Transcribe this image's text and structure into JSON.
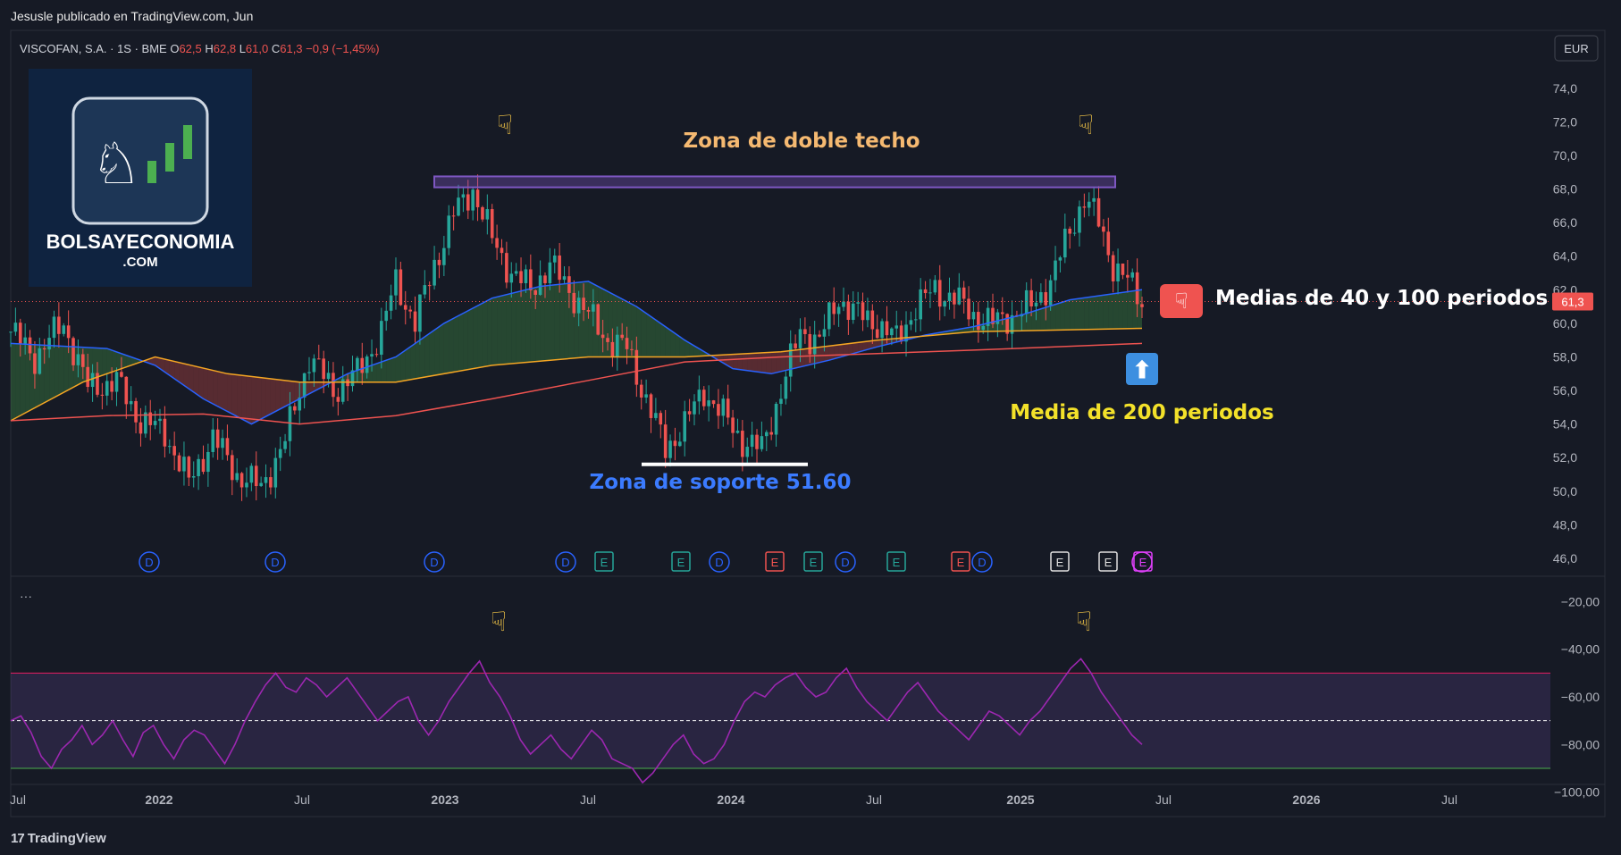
{
  "header": {
    "published_by": "Jesusle publicado en TradingView.com, Jun"
  },
  "symbol": {
    "name": "VISCOFAN, S.A. · 1S · BME",
    "o_label": "O",
    "o_value": "62,5",
    "h_label": "H",
    "h_value": "62,8",
    "l_label": "L",
    "l_value": "61,0",
    "c_label": "C",
    "c_value": "61,3",
    "change": "−0,9 (−1,45%)"
  },
  "currency": "EUR",
  "logo": {
    "line1": "BOLSAYECONOMIA",
    "line2": ".COM"
  },
  "footer": {
    "brand": "TradingView"
  },
  "indicator_menu": "···",
  "colors": {
    "background": "#161a25",
    "up": "#26a69a",
    "down": "#ef5350",
    "ma40": "#2962ff",
    "ma100": "#f5a623",
    "ma200": "#ef5350",
    "rsi": "#9c27b0",
    "resistance_box": "#7e57c2",
    "annot_top": "#f5b971",
    "annot_support": "#3b7bff",
    "annot_ma200": "#f3e12a"
  },
  "chart_data": [
    {
      "type": "candlestick",
      "title": "VISCOFAN, S.A. · 1S · BME",
      "x_ticks": [
        "Jul",
        "2022",
        "Jul",
        "2023",
        "Jul",
        "2024",
        "Jul",
        "2025",
        "Jul",
        "2026",
        "Jul"
      ],
      "y_ticks": [
        "74,0",
        "72,0",
        "70,0",
        "68,0",
        "66,0",
        "64,0",
        "62,0",
        "60,0",
        "58,0",
        "56,0",
        "54,0",
        "52,0",
        "50,0",
        "48,0",
        "46,0"
      ],
      "ylim": [
        45.2,
        75.0
      ],
      "last_price": "61,3",
      "series": [
        {
          "name": "Precio",
          "points": [
            [
              0,
              59.5
            ],
            [
              5,
              58.0
            ],
            [
              11,
              60.0
            ],
            [
              16,
              56.2
            ],
            [
              22,
              56.5
            ],
            [
              27,
              54.2
            ],
            [
              32,
              53.5
            ],
            [
              37,
              50.5
            ],
            [
              42,
              53.2
            ],
            [
              47,
              51.0
            ],
            [
              52,
              50.2
            ],
            [
              57,
              53.0
            ],
            [
              62,
              58.0
            ],
            [
              67,
              56.0
            ],
            [
              72,
              57.0
            ],
            [
              77,
              59.5
            ],
            [
              80,
              62.5
            ],
            [
              84,
              60.0
            ],
            [
              88,
              63.5
            ],
            [
              92,
              66.5
            ],
            [
              96,
              68.0
            ],
            [
              100,
              65.0
            ],
            [
              104,
              63.0
            ],
            [
              108,
              62.0
            ],
            [
              112,
              63.5
            ],
            [
              116,
              62.0
            ],
            [
              120,
              60.5
            ],
            [
              124,
              59.0
            ],
            [
              128,
              58.5
            ],
            [
              132,
              55.5
            ],
            [
              136,
              52.5
            ],
            [
              140,
              54.0
            ],
            [
              144,
              56.0
            ],
            [
              148,
              54.5
            ],
            [
              152,
              53.0
            ],
            [
              156,
              52.5
            ],
            [
              160,
              56.0
            ],
            [
              164,
              59.5
            ],
            [
              168,
              59.0
            ],
            [
              172,
              61.5
            ],
            [
              176,
              60.5
            ],
            [
              180,
              60.0
            ],
            [
              184,
              59.0
            ],
            [
              188,
              61.0
            ],
            [
              192,
              62.0
            ],
            [
              196,
              61.5
            ],
            [
              200,
              60.5
            ],
            [
              204,
              60.0
            ],
            [
              208,
              60.5
            ],
            [
              212,
              61.0
            ],
            [
              216,
              62.5
            ],
            [
              220,
              65.5
            ],
            [
              223,
              67.5
            ],
            [
              226,
              66.0
            ],
            [
              229,
              63.5
            ],
            [
              232,
              62.5
            ],
            [
              235,
              61.3
            ]
          ]
        },
        {
          "name": "Media 40",
          "points": [
            [
              0,
              58.8
            ],
            [
              20,
              58.5
            ],
            [
              30,
              57.5
            ],
            [
              40,
              55.5
            ],
            [
              50,
              54.0
            ],
            [
              60,
              55.5
            ],
            [
              70,
              57.0
            ],
            [
              80,
              58.0
            ],
            [
              90,
              60.0
            ],
            [
              100,
              61.5
            ],
            [
              110,
              62.2
            ],
            [
              120,
              62.5
            ],
            [
              130,
              61.0
            ],
            [
              140,
              59.0
            ],
            [
              150,
              57.3
            ],
            [
              158,
              57.0
            ],
            [
              170,
              57.8
            ],
            [
              180,
              58.6
            ],
            [
              190,
              59.3
            ],
            [
              200,
              59.8
            ],
            [
              210,
              60.5
            ],
            [
              220,
              61.4
            ],
            [
              235,
              62.0
            ]
          ]
        },
        {
          "name": "Media 100",
          "points": [
            [
              0,
              54.2
            ],
            [
              15,
              56.5
            ],
            [
              30,
              58.0
            ],
            [
              45,
              57.0
            ],
            [
              60,
              56.5
            ],
            [
              80,
              56.5
            ],
            [
              100,
              57.5
            ],
            [
              120,
              58.0
            ],
            [
              140,
              58.0
            ],
            [
              160,
              58.3
            ],
            [
              180,
              59.0
            ],
            [
              200,
              59.5
            ],
            [
              235,
              59.7
            ]
          ]
        },
        {
          "name": "Media 200",
          "points": [
            [
              0,
              54.2
            ],
            [
              20,
              54.5
            ],
            [
              40,
              54.6
            ],
            [
              60,
              54.0
            ],
            [
              80,
              54.5
            ],
            [
              100,
              55.5
            ],
            [
              120,
              56.6
            ],
            [
              140,
              57.7
            ],
            [
              160,
              58.0
            ],
            [
              180,
              58.2
            ],
            [
              200,
              58.4
            ],
            [
              235,
              58.8
            ]
          ]
        }
      ],
      "annotations": {
        "double_top": "Zona de doble techo",
        "support": "Zona de soporte 51.60",
        "ma_40_100": "Medias de 40 y 100 periodos",
        "ma_200": "Media de 200 periodos"
      },
      "event_markers": [
        "D",
        "D",
        "D",
        "D",
        "E",
        "E",
        "D",
        "E",
        "E",
        "D",
        "E",
        "E",
        "D",
        "E",
        "E",
        "E"
      ]
    },
    {
      "type": "line",
      "title": "",
      "y_ticks": [
        "−20,00",
        "−40,00",
        "−60,00",
        "−80,00",
        "−100,00"
      ],
      "ylim": [
        -105,
        -15
      ],
      "levels": [
        -50,
        -70,
        -90
      ],
      "series": [
        {
          "name": "",
          "values": [
            -70,
            -68,
            -75,
            -85,
            -90,
            -82,
            -78,
            -72,
            -80,
            -76,
            -70,
            -78,
            -85,
            -75,
            -72,
            -80,
            -86,
            -78,
            -74,
            -76,
            -82,
            -88,
            -80,
            -70,
            -62,
            -55,
            -50,
            -56,
            -58,
            -52,
            -55,
            -60,
            -56,
            -52,
            -58,
            -64,
            -70,
            -66,
            -62,
            -60,
            -70,
            -76,
            -70,
            -62,
            -56,
            -50,
            -45,
            -54,
            -60,
            -68,
            -78,
            -84,
            -80,
            -76,
            -82,
            -86,
            -80,
            -74,
            -78,
            -86,
            -88,
            -90,
            -96,
            -92,
            -86,
            -80,
            -76,
            -84,
            -88,
            -86,
            -80,
            -70,
            -62,
            -58,
            -60,
            -55,
            -52,
            -50,
            -56,
            -60,
            -58,
            -52,
            -48,
            -56,
            -62,
            -66,
            -70,
            -64,
            -58,
            -54,
            -60,
            -66,
            -70,
            -74,
            -78,
            -72,
            -66,
            -68,
            -72,
            -76,
            -70,
            -66,
            -60,
            -54,
            -48,
            -44,
            -50,
            -58,
            -64,
            -70,
            -76,
            -80
          ]
        }
      ]
    }
  ]
}
